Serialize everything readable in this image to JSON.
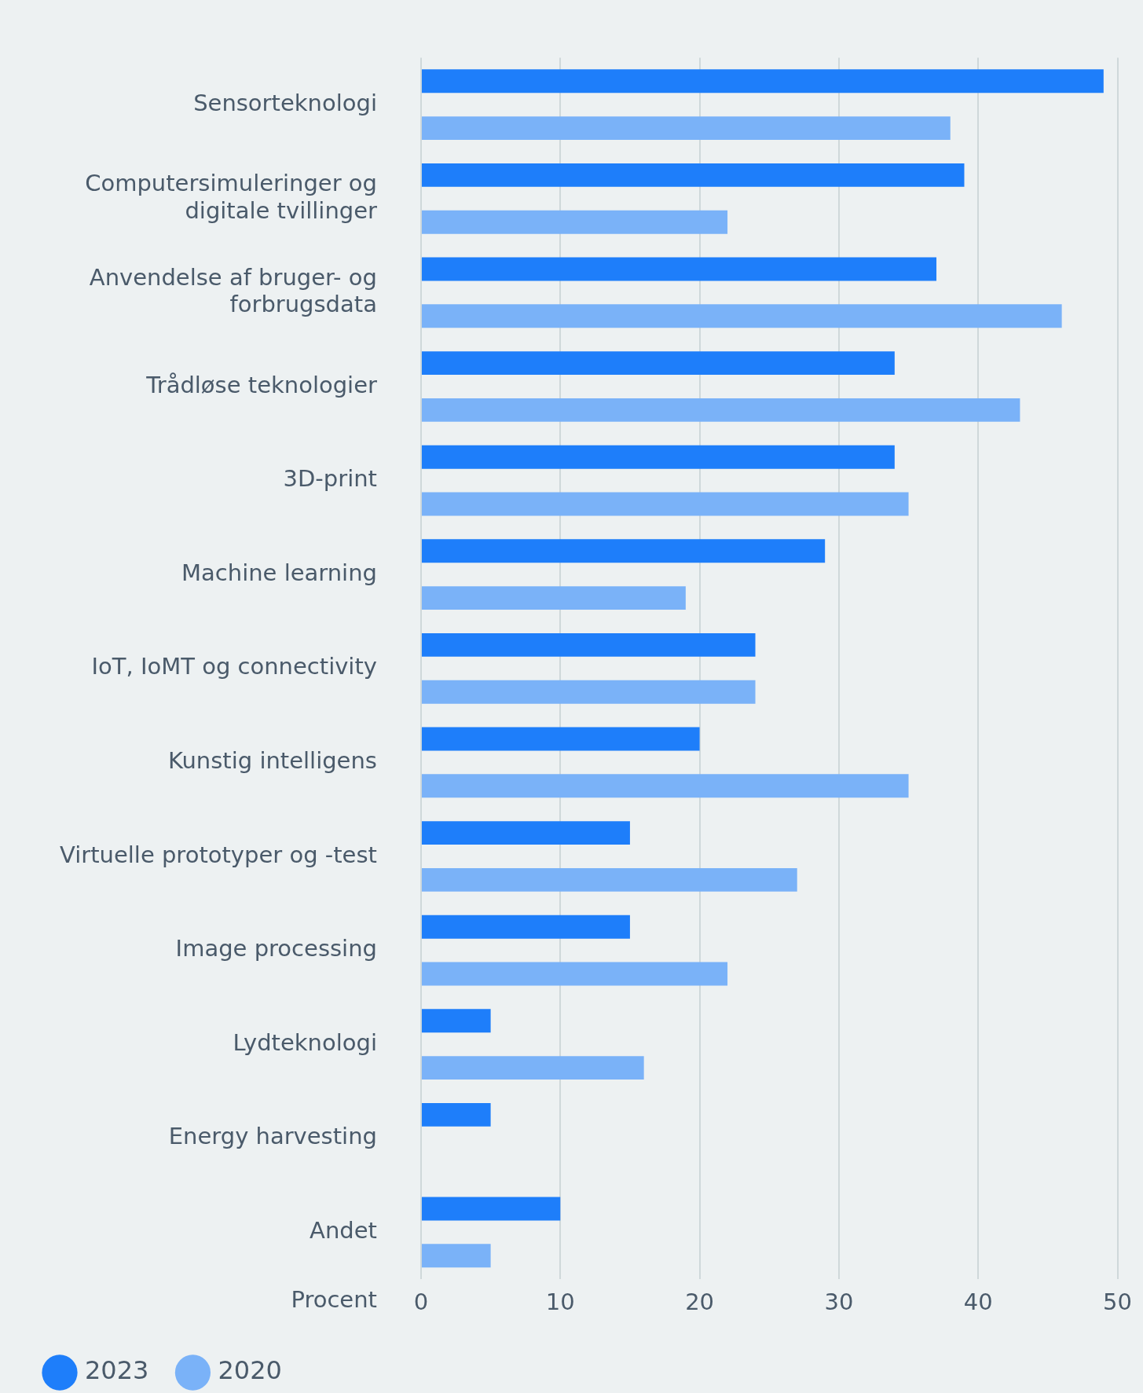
{
  "chart_data": {
    "type": "bar",
    "orientation": "horizontal",
    "xlabel": "Procent",
    "categories": [
      "Sensorteknologi",
      "Computersimuleringer og digitale tvillinger",
      "Anvendelse af bruger- og forbrugsdata",
      "Trådløse teknologier",
      "3D-print",
      "Machine learning",
      "IoT, IoMT og connectivity",
      "Kunstig intelligens",
      "Virtuelle prototyper og -test",
      "Image processing",
      "Lydteknologi",
      "Energy harvesting",
      "Andet"
    ],
    "series": [
      {
        "name": "2023",
        "color": "#1e7efa",
        "values": [
          49,
          39,
          37,
          34,
          34,
          29,
          24,
          20,
          15,
          15,
          5,
          5,
          10
        ]
      },
      {
        "name": "2020",
        "color": "#7ab2f8",
        "values": [
          38,
          22,
          46,
          43,
          35,
          19,
          24,
          35,
          27,
          22,
          16,
          null,
          5
        ]
      }
    ],
    "xlim": [
      0,
      50
    ],
    "xticks": [
      0,
      10,
      20,
      30,
      40,
      50
    ],
    "grid": "x",
    "legend": "bottom"
  }
}
